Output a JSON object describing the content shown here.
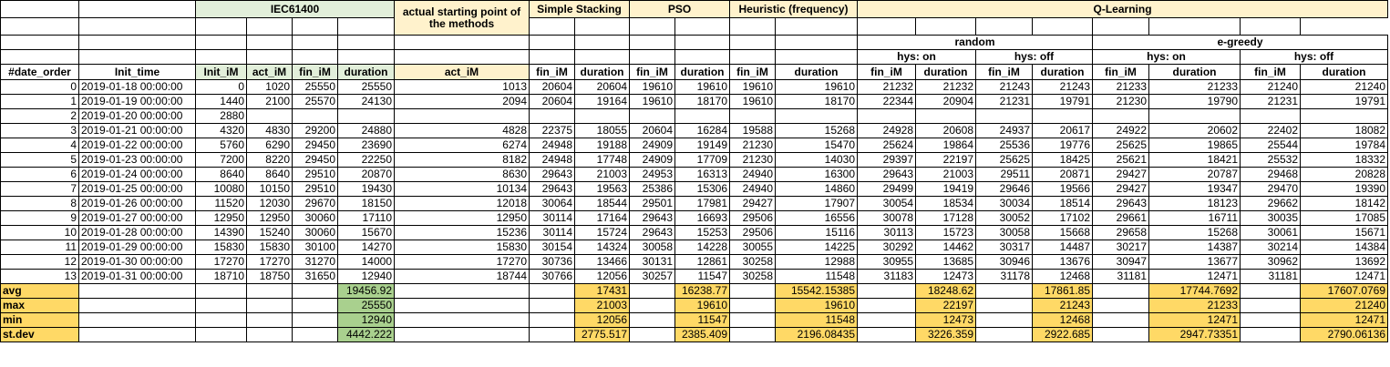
{
  "groups": {
    "iec": "IEC61400",
    "actual_start": "actual starting point of the methods",
    "simple_stacking": "Simple  Stacking",
    "pso": "PSO",
    "heuristic": "Heuristic (frequency)",
    "qlearning": "Q-Learning",
    "random": "random",
    "egreedy": "e-greedy",
    "hys_on": "hys: on",
    "hys_off": "hys: off"
  },
  "columns": [
    "#date_order",
    "Init_time",
    "Init_iM",
    "act_iM",
    "fin_iM",
    "duration",
    "act_iM",
    "fin_iM",
    "duration",
    "fin_iM",
    "duration",
    "fin_iM",
    "duration",
    "fin_iM",
    "duration",
    "fin_iM",
    "duration",
    "fin_iM",
    "duration",
    "fin_iM",
    "duration"
  ],
  "rows": [
    [
      "0",
      "2019-01-18 00:00:00",
      "0",
      "1020",
      "25550",
      "25550",
      "1013",
      "20604",
      "20604",
      "19610",
      "19610",
      "19610",
      "19610",
      "21232",
      "21232",
      "21243",
      "21243",
      "21233",
      "21233",
      "21240",
      "21240"
    ],
    [
      "1",
      "2019-01-19 00:00:00",
      "1440",
      "2100",
      "25570",
      "24130",
      "2094",
      "20604",
      "19164",
      "19610",
      "18170",
      "19610",
      "18170",
      "22344",
      "20904",
      "21231",
      "19791",
      "21230",
      "19790",
      "21231",
      "19791"
    ],
    [
      "2",
      "2019-01-20 00:00:00",
      "2880",
      "",
      "",
      "",
      "",
      "",
      "",
      "",
      "",
      "",
      "",
      "",
      "",
      "",
      "",
      "",
      "",
      "",
      ""
    ],
    [
      "3",
      "2019-01-21 00:00:00",
      "4320",
      "4830",
      "29200",
      "24880",
      "4828",
      "22375",
      "18055",
      "20604",
      "16284",
      "19588",
      "15268",
      "24928",
      "20608",
      "24937",
      "20617",
      "24922",
      "20602",
      "22402",
      "18082"
    ],
    [
      "4",
      "2019-01-22 00:00:00",
      "5760",
      "6290",
      "29450",
      "23690",
      "6274",
      "24948",
      "19188",
      "24909",
      "19149",
      "21230",
      "15470",
      "25624",
      "19864",
      "25536",
      "19776",
      "25625",
      "19865",
      "25544",
      "19784"
    ],
    [
      "5",
      "2019-01-23 00:00:00",
      "7200",
      "8220",
      "29450",
      "22250",
      "8182",
      "24948",
      "17748",
      "24909",
      "17709",
      "21230",
      "14030",
      "29397",
      "22197",
      "25625",
      "18425",
      "25621",
      "18421",
      "25532",
      "18332"
    ],
    [
      "6",
      "2019-01-24 00:00:00",
      "8640",
      "8640",
      "29510",
      "20870",
      "8630",
      "29643",
      "21003",
      "24953",
      "16313",
      "24940",
      "16300",
      "29643",
      "21003",
      "29511",
      "20871",
      "29427",
      "20787",
      "29468",
      "20828"
    ],
    [
      "7",
      "2019-01-25 00:00:00",
      "10080",
      "10150",
      "29510",
      "19430",
      "10134",
      "29643",
      "19563",
      "25386",
      "15306",
      "24940",
      "14860",
      "29499",
      "19419",
      "29646",
      "19566",
      "29427",
      "19347",
      "29470",
      "19390"
    ],
    [
      "8",
      "2019-01-26 00:00:00",
      "11520",
      "12030",
      "29670",
      "18150",
      "12018",
      "30064",
      "18544",
      "29501",
      "17981",
      "29427",
      "17907",
      "30054",
      "18534",
      "30034",
      "18514",
      "29643",
      "18123",
      "29662",
      "18142"
    ],
    [
      "9",
      "2019-01-27 00:00:00",
      "12950",
      "12950",
      "30060",
      "17110",
      "12950",
      "30114",
      "17164",
      "29643",
      "16693",
      "29506",
      "16556",
      "30078",
      "17128",
      "30052",
      "17102",
      "29661",
      "16711",
      "30035",
      "17085"
    ],
    [
      "10",
      "2019-01-28 00:00:00",
      "14390",
      "15240",
      "30060",
      "15670",
      "15236",
      "30114",
      "15724",
      "29643",
      "15253",
      "29506",
      "15116",
      "30113",
      "15723",
      "30058",
      "15668",
      "29658",
      "15268",
      "30061",
      "15671"
    ],
    [
      "11",
      "2019-01-29 00:00:00",
      "15830",
      "15830",
      "30100",
      "14270",
      "15830",
      "30154",
      "14324",
      "30058",
      "14228",
      "30055",
      "14225",
      "30292",
      "14462",
      "30317",
      "14487",
      "30217",
      "14387",
      "30214",
      "14384"
    ],
    [
      "12",
      "2019-01-30 00:00:00",
      "17270",
      "17270",
      "31270",
      "14000",
      "17270",
      "30736",
      "13466",
      "30131",
      "12861",
      "30258",
      "12988",
      "30955",
      "13685",
      "30946",
      "13676",
      "30947",
      "13677",
      "30962",
      "13692"
    ],
    [
      "13",
      "2019-01-31 00:00:00",
      "18710",
      "18750",
      "31650",
      "12940",
      "18744",
      "30766",
      "12056",
      "30257",
      "11547",
      "30258",
      "11548",
      "31183",
      "12473",
      "31178",
      "12468",
      "31181",
      "12471",
      "31181",
      "12471"
    ]
  ],
  "stats": [
    {
      "label": "avg",
      "values": [
        "19456.92",
        "17431",
        "16238.77",
        "15542.15385",
        "18248.62",
        "17861.85",
        "17744.7692",
        "17607.0769"
      ]
    },
    {
      "label": "max",
      "values": [
        "25550",
        "21003",
        "19610",
        "19610",
        "22197",
        "21243",
        "21233",
        "21240"
      ]
    },
    {
      "label": "min",
      "values": [
        "12940",
        "12056",
        "11547",
        "11548",
        "12473",
        "12468",
        "12471",
        "12471"
      ]
    },
    {
      "label": "st.dev",
      "values": [
        "4442.222",
        "2775.517",
        "2385.409",
        "2196.08435",
        "3226.359",
        "2922.685",
        "2947.73351",
        "2790.06136"
      ]
    }
  ],
  "colors": {
    "green_header": "#e2efda",
    "green_stat": "#a9d08e",
    "yellow_header": "#fff2cc",
    "yellow_stat": "#ffd966"
  }
}
